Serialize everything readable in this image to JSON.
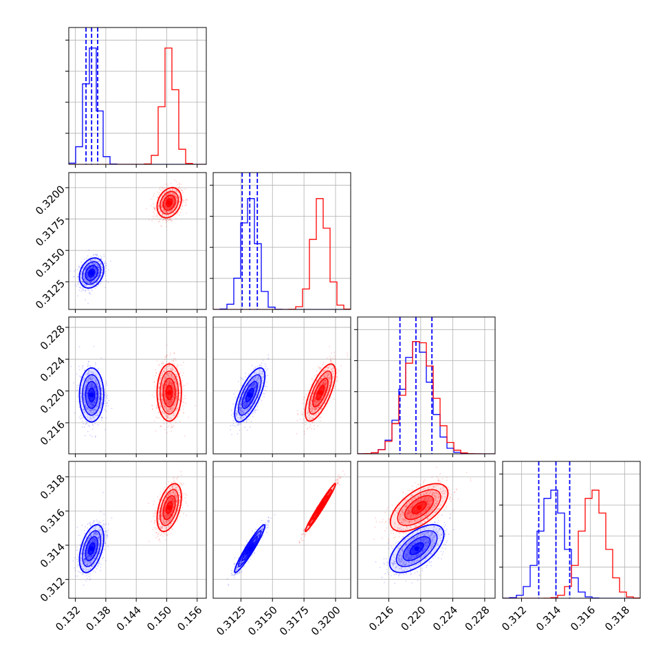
{
  "chart_data": {
    "type": "corner",
    "grid": true,
    "series": [
      {
        "color": "#0000ff",
        "mean": [
          0.1352,
          0.3132,
          0.2195,
          0.3138
        ],
        "sd": [
          0.0012,
          0.0006,
          0.0017,
          0.0007
        ],
        "corr": {
          "1-0": 0.25,
          "2-0": 0.0,
          "2-1": 0.7,
          "3-0": 0.45,
          "3-1": 0.95,
          "3-2": 0.6
        }
      },
      {
        "color": "#ff0000",
        "mean": [
          0.1505,
          0.3188,
          0.2198,
          0.3162
        ],
        "sd": [
          0.0012,
          0.0006,
          0.0018,
          0.0007
        ],
        "corr": {
          "1-0": 0.25,
          "2-0": 0.0,
          "2-1": 0.7,
          "3-0": 0.45,
          "3-1": 0.98,
          "3-2": 0.6
        }
      }
    ],
    "quantile_lines": {
      "color": "#0000ff",
      "values": [
        [
          0.1341,
          0.1352,
          0.1364
        ],
        [
          0.3126,
          0.3132,
          0.3138
        ],
        [
          0.2174,
          0.2194,
          0.2214
        ],
        [
          0.313,
          0.314,
          0.3148
        ]
      ]
    },
    "axis_ranges": [
      [
        0.1307,
        0.1578
      ],
      [
        0.3103,
        0.3212
      ],
      [
        0.2121,
        0.2293
      ],
      [
        0.3109,
        0.3189
      ]
    ],
    "ticks": [
      [
        0.132,
        0.138,
        0.144,
        0.15,
        0.156
      ],
      [
        0.3125,
        0.315,
        0.3175,
        0.32
      ],
      [
        0.216,
        0.22,
        0.224,
        0.228
      ],
      [
        0.312,
        0.314,
        0.316,
        0.318
      ]
    ],
    "tick_labels": [
      [
        "0.132",
        "0.138",
        "0.144",
        "0.150",
        "0.156"
      ],
      [
        "0.3125",
        "0.3150",
        "0.3175",
        "0.3200"
      ],
      [
        "0.216",
        "0.220",
        "0.224",
        "0.228"
      ],
      [
        "0.312",
        "0.314",
        "0.316",
        "0.318"
      ]
    ],
    "hist_peak_fraction": [
      0.85,
      0.81,
      0.82,
      0.79
    ]
  }
}
